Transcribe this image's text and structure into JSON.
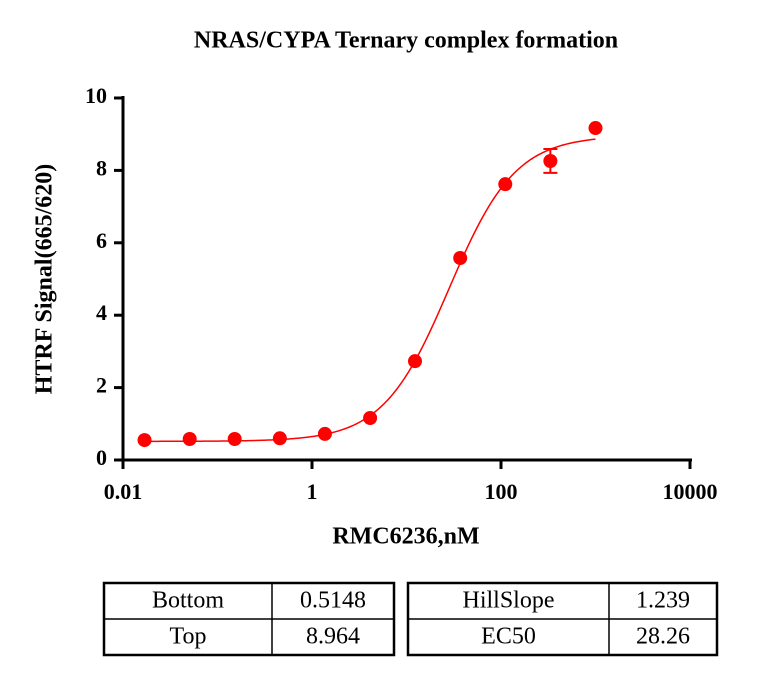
{
  "chart_data": {
    "type": "scatter",
    "title": "NRAS/CYPA Ternary complex formation",
    "x_label": "RMC6236,nM",
    "y_label": "HTRF Signal(665/620)",
    "log_x": true,
    "xlim": [
      0.01,
      10000
    ],
    "xticks": [
      0.01,
      1,
      100,
      10000
    ],
    "ylim": [
      0,
      10
    ],
    "yticks": [
      0,
      2,
      4,
      6,
      8,
      10
    ],
    "series": [
      {
        "color": "#ff0000",
        "x": [
          0.0169,
          0.0508,
          0.152,
          0.457,
          1.37,
          4.12,
          12.3,
          37,
          111,
          333,
          1000
        ],
        "values": [
          0.55,
          0.58,
          0.58,
          0.6,
          0.72,
          1.16,
          2.73,
          5.58,
          7.62,
          8.26,
          9.17
        ],
        "errors": [
          null,
          null,
          null,
          null,
          null,
          null,
          null,
          null,
          null,
          0.33,
          null
        ]
      }
    ]
  },
  "tables": [
    {
      "rows": [
        [
          "Bottom",
          "0.5148"
        ],
        [
          "Top",
          "8.964"
        ]
      ]
    },
    {
      "rows": [
        [
          "HillSlope",
          "1.239"
        ],
        [
          "EC50",
          "28.26"
        ]
      ]
    }
  ]
}
